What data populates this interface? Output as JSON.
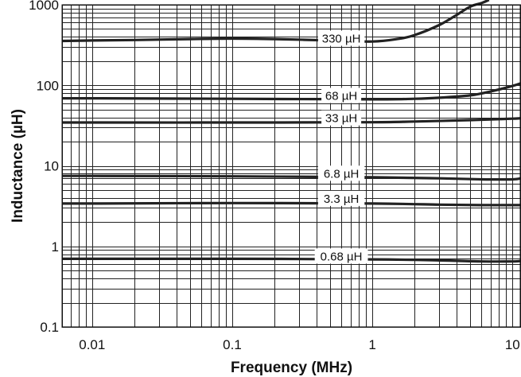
{
  "chart_data": {
    "type": "line",
    "title": "",
    "xlabel": "Frequency (MHz)",
    "ylabel": "Inductance (µH)",
    "xscale": "log",
    "yscale": "log",
    "xlim": [
      0.0061,
      11.5
    ],
    "ylim": [
      0.1,
      1000
    ],
    "grid": true,
    "legend": "none",
    "x_tick_labels": [
      "0.01",
      "0.1",
      "1",
      "10"
    ],
    "y_tick_labels": [
      "0.1",
      "1",
      "10",
      "100",
      "1000"
    ],
    "series": [
      {
        "name": "330 µH",
        "x": [
          0.0061,
          0.01,
          0.02,
          0.05,
          0.1,
          0.2,
          0.5,
          1,
          1.5,
          2,
          3,
          4,
          5,
          6,
          6.8
        ],
        "values": [
          355,
          360,
          365,
          375,
          380,
          375,
          360,
          350,
          375,
          420,
          560,
          750,
          950,
          1050,
          1150
        ]
      },
      {
        "name": "68 µH",
        "x": [
          0.0061,
          0.01,
          0.1,
          1,
          2,
          3,
          5,
          7,
          10,
          11.5
        ],
        "values": [
          69,
          69,
          68,
          67,
          68,
          70,
          75,
          84,
          98,
          106
        ]
      },
      {
        "name": "33 µH",
        "x": [
          0.0061,
          0.01,
          0.1,
          1,
          2,
          5,
          10,
          11.5
        ],
        "values": [
          34.5,
          34.5,
          34.5,
          34.8,
          35.5,
          37,
          38.5,
          39
        ]
      },
      {
        "name": "6.8 µH",
        "x": [
          0.0061,
          0.01,
          0.1,
          1,
          3,
          6,
          10,
          11.5
        ],
        "values": [
          7.5,
          7.5,
          7.4,
          7.2,
          7,
          6.8,
          6.8,
          7
        ]
      },
      {
        "name": "3.3 µH",
        "x": [
          0.0061,
          0.01,
          0.1,
          1,
          3,
          6,
          10,
          11.5
        ],
        "values": [
          3.4,
          3.4,
          3.45,
          3.4,
          3.3,
          3.25,
          3.25,
          3.25
        ]
      },
      {
        "name": "0.68 µH",
        "x": [
          0.0061,
          0.01,
          0.1,
          1,
          3,
          6,
          10,
          11.5
        ],
        "values": [
          0.7,
          0.7,
          0.7,
          0.69,
          0.67,
          0.65,
          0.65,
          0.66
        ]
      }
    ],
    "series_labels": [
      {
        "text": "330 µH",
        "x": 0.6,
        "y": 380
      },
      {
        "text": "68 µH",
        "x": 0.6,
        "y": 74
      },
      {
        "text": "33 µH",
        "x": 0.6,
        "y": 39
      },
      {
        "text": "6.8 µH",
        "x": 0.6,
        "y": 8.0
      },
      {
        "text": "3.3 µH",
        "x": 0.6,
        "y": 3.9
      },
      {
        "text": "0.68 µH",
        "x": 0.6,
        "y": 0.75
      }
    ]
  }
}
